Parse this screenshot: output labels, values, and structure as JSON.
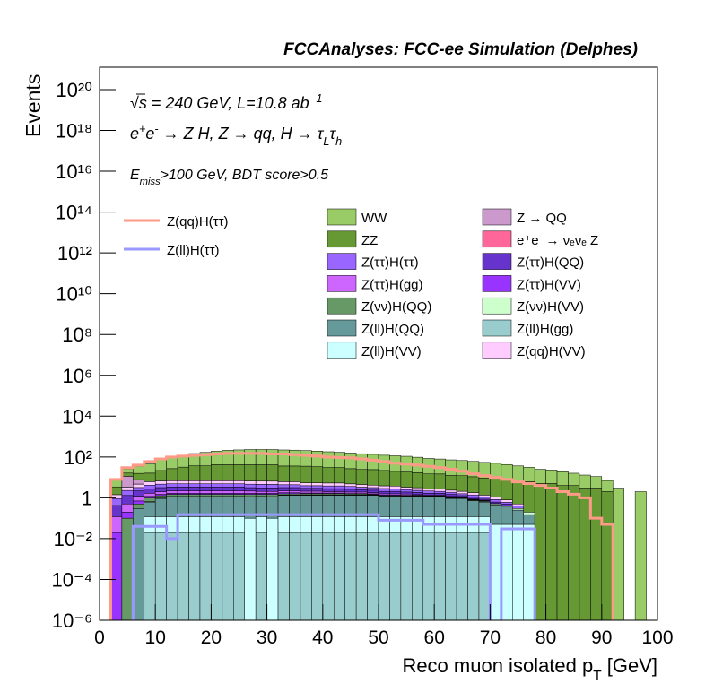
{
  "chart_data": {
    "type": "stacked_histogram",
    "title": "FCCAnalyses: FCC-ee Simulation (Delphes)",
    "ylabel": "Events",
    "xlabel": [
      {
        "text": "Reco muon isolated p"
      },
      {
        "text": "T",
        "sub": true
      },
      {
        "text": " [GeV]"
      }
    ],
    "annotations": [
      [
        {
          "text": "√s = 240 GeV, L=10.8 ab"
        },
        {
          "text": " -1",
          "sup": true
        }
      ],
      [
        {
          "text": "e"
        },
        {
          "text": "+",
          "sup": true
        },
        {
          "text": "e"
        },
        {
          "text": "-",
          "sup": true
        },
        {
          "text": " → Z H, Z  → qq, H  → τ"
        },
        {
          "text": "L",
          "sub": true
        },
        {
          "text": "τ"
        },
        {
          "text": "h",
          "sub": true
        }
      ],
      [
        {
          "text": "E"
        },
        {
          "text": "miss",
          "sub": true
        },
        {
          "text": ">100 GeV, BDT score>0.5"
        }
      ]
    ],
    "log_y": true,
    "xlim": [
      0,
      100
    ],
    "xticks": [
      0,
      10,
      20,
      30,
      40,
      50,
      60,
      70,
      80,
      90,
      100
    ],
    "ylim": [
      1e-06,
      1.25e+21
    ],
    "yticks": [
      {
        "value": 1e-06,
        "label": "10⁻⁶"
      },
      {
        "value": 0.0001,
        "label": "10⁻⁴"
      },
      {
        "value": 0.01,
        "label": "10⁻²"
      },
      1,
      {
        "value": 100,
        "label": "10²"
      },
      {
        "value": 10000.0,
        "label": "10⁴"
      },
      {
        "value": 1000000.0,
        "label": "10⁶"
      },
      {
        "value": 100000000.0,
        "label": "10⁸"
      },
      {
        "value": 10000000000.0,
        "label": "10¹⁰"
      },
      {
        "value": 1000000000000.0,
        "label": "10¹²"
      },
      {
        "value": 100000000000000.0,
        "label": "10¹⁴"
      },
      {
        "value": 1e+16,
        "label": "10¹⁶"
      },
      {
        "value": 1e+18,
        "label": "10¹⁸"
      },
      {
        "value": 1e+20,
        "label": "10²⁰"
      }
    ],
    "bins": [
      0,
      2,
      4,
      6,
      8,
      10,
      12,
      14,
      16,
      18,
      20,
      22,
      24,
      26,
      28,
      30,
      32,
      34,
      36,
      38,
      40,
      42,
      44,
      46,
      48,
      50,
      52,
      54,
      56,
      58,
      60,
      62,
      64,
      66,
      68,
      70,
      72,
      74,
      76,
      78,
      80,
      82,
      84,
      86,
      88,
      90,
      92,
      94,
      96,
      98,
      100
    ],
    "series": [
      {
        "name": "WW",
        "color": "#99cc66",
        "values": [
          0,
          5,
          10,
          20,
          30,
          50,
          70,
          90,
          110,
          130,
          150,
          170,
          180,
          190,
          190,
          190,
          185,
          180,
          170,
          160,
          150,
          140,
          130,
          120,
          110,
          100,
          95,
          90,
          80,
          70,
          65,
          60,
          55,
          50,
          45,
          40,
          35,
          30,
          25,
          20,
          18,
          15,
          12,
          10,
          8,
          5,
          3,
          0,
          2,
          0
        ]
      },
      {
        "name": "Z → QQ",
        "color": "#cc99cc",
        "values": [
          0,
          0,
          8,
          3,
          0,
          0,
          0,
          0,
          0,
          0,
          0,
          0,
          0,
          0,
          0,
          0,
          0,
          0,
          0,
          0,
          0,
          0,
          0,
          0,
          0,
          0,
          0,
          0,
          0,
          0,
          0,
          0,
          0,
          0,
          0,
          0,
          0,
          0,
          0,
          0,
          0,
          0,
          0,
          0,
          0,
          0,
          0,
          0,
          0,
          0
        ]
      },
      {
        "name": "ZZ",
        "color": "#669933",
        "values": [
          0,
          2,
          5,
          8,
          10,
          15,
          20,
          25,
          30,
          30,
          35,
          35,
          35,
          35,
          35,
          35,
          30,
          30,
          30,
          28,
          25,
          25,
          22,
          20,
          20,
          18,
          16,
          15,
          14,
          12,
          12,
          10,
          10,
          9,
          8,
          8,
          7,
          6,
          6,
          5,
          5,
          4,
          4,
          3,
          3,
          2,
          0,
          0,
          0,
          0
        ]
      },
      {
        "name": "e⁺e⁻→ νₑνₑ Z",
        "color": "#ff6699",
        "values": [
          0,
          0,
          0,
          0.01,
          0,
          0,
          0,
          0,
          0,
          0,
          0,
          0,
          0,
          0,
          0,
          0,
          0,
          0,
          0,
          0,
          0,
          0,
          0,
          0,
          0,
          0,
          0,
          0,
          0,
          0,
          0,
          0,
          0,
          0,
          0,
          0,
          0,
          0,
          0,
          0,
          0,
          0,
          0,
          0,
          0,
          0,
          0,
          0,
          0,
          0
        ]
      },
      {
        "name": "Z(ττ)H(ττ)",
        "color": "#9966ff",
        "values": [
          0,
          0.5,
          1,
          1,
          1.5,
          1.5,
          1.5,
          1.5,
          1.5,
          1.5,
          1.5,
          1.5,
          1.5,
          1.5,
          1.5,
          1.5,
          1.2,
          1.2,
          1,
          1,
          1,
          1,
          1,
          0.8,
          0.8,
          0.8,
          0.7,
          0.6,
          0.5,
          0.5,
          0.4,
          0.4,
          0.3,
          0.3,
          0.2,
          0.2,
          0.1,
          0.1,
          0,
          0,
          0,
          0,
          0,
          0,
          0,
          0,
          0,
          0,
          0,
          0
        ]
      },
      {
        "name": "Z(ττ)H(QQ)",
        "color": "#6633cc",
        "values": [
          0,
          0.3,
          0.8,
          1,
          1,
          1.2,
          1.2,
          1.2,
          1.2,
          1.2,
          1.2,
          1.2,
          1.2,
          1,
          1,
          1,
          1,
          1,
          0.8,
          0.8,
          0.8,
          0.8,
          0.7,
          0.6,
          0.6,
          0.5,
          0.5,
          0.4,
          0.4,
          0.3,
          0.3,
          0.3,
          0.2,
          0.2,
          0.1,
          0.1,
          0.1,
          0,
          0,
          0,
          0,
          0,
          0,
          0,
          0,
          0,
          0,
          0,
          0,
          0
        ]
      },
      {
        "name": "Z(ττ)H(gg)",
        "color": "#cc66ff",
        "values": [
          0,
          0.1,
          0.3,
          0.5,
          0.5,
          0.5,
          0.5,
          0.5,
          0.5,
          0.5,
          0.5,
          0.5,
          0.5,
          0.5,
          0.4,
          0.4,
          0.4,
          0.4,
          0.4,
          0.4,
          0.3,
          0.3,
          0.3,
          0.3,
          0.2,
          0.2,
          0.2,
          0.2,
          0.1,
          0.1,
          0.1,
          0.1,
          0.05,
          0.05,
          0.05,
          0,
          0,
          0,
          0,
          0,
          0,
          0,
          0,
          0,
          0,
          0,
          0,
          0,
          0,
          0
        ]
      },
      {
        "name": "Z(ττ)H(VV)",
        "color": "#9933ff",
        "values": [
          0,
          0.02,
          0.1,
          0.2,
          0.2,
          0.2,
          0.2,
          0.2,
          0.2,
          0.2,
          0.2,
          0.2,
          0.2,
          0.2,
          0.2,
          0.2,
          0.2,
          0.2,
          0.15,
          0.15,
          0.15,
          0.15,
          0.1,
          0.1,
          0.1,
          0.1,
          0.1,
          0.08,
          0.08,
          0.05,
          0.05,
          0.05,
          0.03,
          0.03,
          0.02,
          0,
          0,
          0,
          0,
          0,
          0,
          0,
          0,
          0,
          0,
          0,
          0,
          0,
          0,
          0
        ]
      },
      {
        "name": "Z(νν)H(QQ)",
        "color": "#669966",
        "values": [
          0,
          0,
          0.1,
          0.2,
          0.3,
          0.3,
          0.3,
          0.3,
          0.3,
          0.3,
          0.3,
          0.3,
          0.3,
          0.3,
          0.3,
          0.3,
          0.2,
          0.2,
          0.2,
          0.2,
          0.2,
          0.2,
          0.15,
          0.15,
          0.1,
          0.1,
          0.1,
          0.08,
          0.08,
          0.05,
          0.05,
          0.05,
          0.03,
          0.03,
          0.02,
          0.02,
          0,
          0,
          0,
          0,
          0,
          0,
          0,
          0,
          0,
          0,
          0,
          0,
          0,
          0
        ]
      },
      {
        "name": "Z(νν)H(VV)",
        "color": "#ccffcc",
        "values": [
          0,
          0,
          0,
          0,
          0.05,
          0.05,
          0.05,
          0.05,
          0.05,
          0.05,
          0.05,
          0.05,
          0.05,
          0.05,
          0.05,
          0.05,
          0.05,
          0.05,
          0.05,
          0.05,
          0.05,
          0.05,
          0.05,
          0.05,
          0.05,
          0.05,
          0.05,
          0.05,
          0.05,
          0.05,
          0.05,
          0.05,
          0.05,
          0.05,
          0.05,
          0.05,
          0.05,
          0.05,
          0.05,
          0,
          0,
          0,
          0,
          0,
          0,
          0,
          0,
          0,
          0,
          0
        ]
      },
      {
        "name": "Z(ll)H(QQ)",
        "color": "#669999",
        "values": [
          0,
          0,
          0,
          0.3,
          0.5,
          0.8,
          1,
          1,
          1,
          1,
          1,
          1,
          1,
          1,
          1,
          1,
          1.2,
          1.2,
          1.2,
          1.2,
          1.2,
          1.2,
          1.2,
          1.2,
          1.2,
          1,
          1,
          1,
          1,
          1,
          1,
          0.8,
          0.8,
          0.6,
          0.5,
          0.4,
          0.3,
          0.2,
          0.1,
          0,
          0,
          0,
          0,
          0,
          0,
          0,
          0,
          0,
          0,
          0
        ]
      },
      {
        "name": "Z(ll)H(gg)",
        "color": "#99cccc",
        "values": [
          0,
          0,
          0,
          0,
          0.02,
          0.02,
          0.02,
          0.02,
          0.02,
          0.02,
          0.02,
          0.02,
          0.02,
          0,
          0.02,
          0,
          0.02,
          0.02,
          0.02,
          0.02,
          0.02,
          0.02,
          0.02,
          0.02,
          0.02,
          0.02,
          0.02,
          0.02,
          0.02,
          0.02,
          0.02,
          0.02,
          0.02,
          0.02,
          0.02,
          0,
          0,
          0,
          0,
          0,
          0,
          0,
          0,
          0,
          0,
          0,
          0,
          0,
          0,
          0
        ]
      },
      {
        "name": "Z(ll)H(VV)",
        "color": "#ccffff",
        "values": [
          0,
          0,
          0,
          0,
          0.1,
          0.1,
          0.1,
          0.1,
          0.1,
          0.1,
          0.1,
          0.1,
          0.1,
          0.1,
          0.1,
          0.1,
          0.1,
          0.1,
          0.1,
          0.1,
          0.1,
          0.1,
          0.1,
          0.1,
          0.1,
          0.1,
          0.1,
          0.1,
          0.1,
          0.1,
          0.1,
          0.1,
          0.1,
          0.1,
          0.1,
          0.05,
          0.05,
          0.05,
          0.05,
          0,
          0,
          0,
          0,
          0,
          0,
          0,
          0,
          0,
          0,
          0
        ]
      },
      {
        "name": "Z(qq)H(VV)",
        "color": "#ffccff",
        "values": [
          0,
          0.5,
          1,
          1.5,
          2,
          2,
          2,
          2,
          2,
          2,
          2,
          2,
          2,
          2,
          2,
          2,
          1.8,
          1.8,
          1.5,
          1.5,
          1.5,
          1.5,
          1.2,
          1.2,
          1,
          1,
          1,
          0.8,
          0.8,
          0.6,
          0.6,
          0.5,
          0.5,
          0.4,
          0.3,
          0.3,
          0.2,
          0.1,
          0,
          0,
          0,
          0,
          0,
          0,
          0,
          0,
          0,
          0,
          0,
          0
        ]
      }
    ],
    "line_series": [
      {
        "name": "Z(qq)H(ττ)",
        "color": "#ff9988",
        "values": [
          null,
          8,
          30,
          40,
          60,
          80,
          100,
          110,
          120,
          130,
          140,
          150,
          150,
          150,
          150,
          140,
          140,
          130,
          120,
          110,
          100,
          95,
          90,
          80,
          70,
          60,
          50,
          45,
          40,
          35,
          30,
          25,
          20,
          15,
          12,
          10,
          8,
          6,
          5,
          4,
          3,
          2,
          1.5,
          1,
          0.1,
          0.05,
          null,
          null,
          null,
          null
        ]
      },
      {
        "name": "Z(ll)H(ττ)",
        "color": "#9999ff",
        "values": [
          null,
          null,
          null,
          0.04,
          0.04,
          0.04,
          0.01,
          0.15,
          0.15,
          0.15,
          0.15,
          0.15,
          0.15,
          0.15,
          0.15,
          0.15,
          0.15,
          0.15,
          0.15,
          0.15,
          0.15,
          0.15,
          0.15,
          0.15,
          0.15,
          0.08,
          0.08,
          0.08,
          0.08,
          0.05,
          0.05,
          0.05,
          0.05,
          0.05,
          0.05,
          null,
          0.03,
          0.03,
          0.03,
          null,
          null,
          null,
          null,
          null,
          null,
          null,
          null,
          null,
          null,
          null
        ]
      }
    ]
  }
}
